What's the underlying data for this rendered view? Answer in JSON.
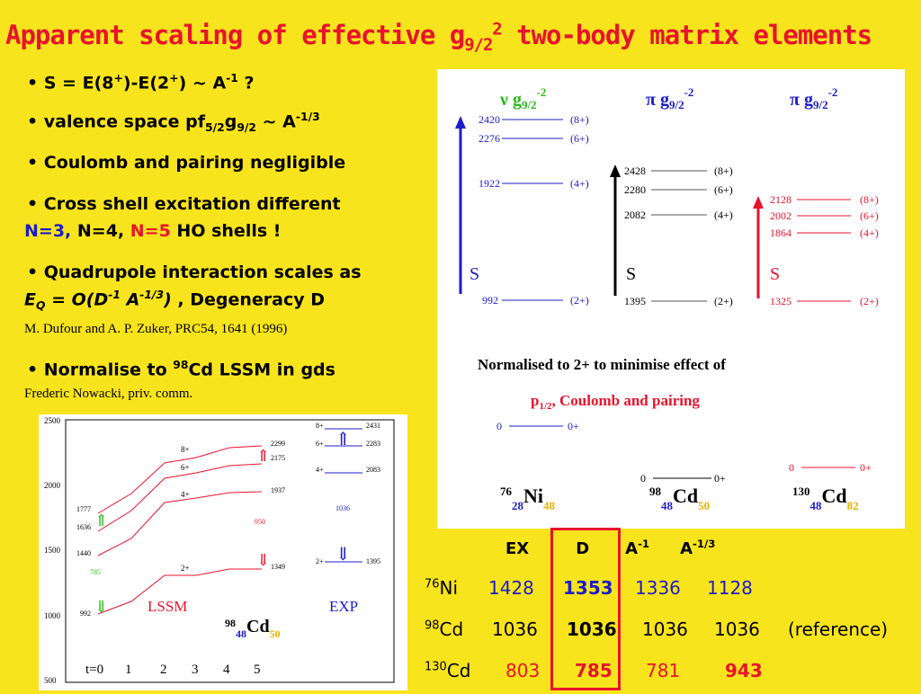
{
  "title": {
    "main": "Apparent scaling of effective g",
    "sub": "9/2",
    "sup": "2",
    "tail": " two-body matrix elements"
  },
  "bullets": {
    "b1": {
      "pre": "• S = E(8",
      "s1": "+",
      "mid": ")-E(2",
      "s2": "+",
      "post": ") ~ A",
      "s3": "-1",
      "end": " ?"
    },
    "b2": {
      "pre": "• valence space pf",
      "s1": "5/2",
      "mid": "g",
      "s2": "9/2",
      "post": " ~ A",
      "s3": "-1/3"
    },
    "b3": "• Coulomb and pairing negligible",
    "b4a": "• Cross shell excitation different",
    "b4b": {
      "n3": "N=3,",
      "n4": " N=4, ",
      "n5": "N=5",
      "ho": " HO shells !"
    },
    "b5a": "• Quadrupole interaction scales as",
    "b5b": {
      "e": "E",
      "q": "Q",
      "eq": " = ",
      "o": "O(D",
      "m1": "-1",
      "a": " A",
      "m13": "-1/3",
      "close": ")",
      "deg": " , Degeneracy D"
    },
    "ref1": "M. Dufour and A. P. Zuker,  PRC54, 1641 (1996)",
    "b6": {
      "pre": "• Normalise to ",
      "mass": "98",
      "post": "Cd LSSM in gds"
    },
    "ref2": "Frederic Nowacki, priv. comm."
  },
  "top_panel": {
    "headers": [
      {
        "sym": "ν",
        "g": "g",
        "sub": "9/2",
        "sup": "-2",
        "color": "#2cb81c"
      },
      {
        "sym": "π",
        "g": "g",
        "sub": "9/2",
        "sup": "-2",
        "color": "#1c1cc8"
      },
      {
        "sym": "π",
        "g": "g",
        "sub": "9/2",
        "sup": "-2",
        "color": "#1c1cc8"
      }
    ],
    "s_label": "S",
    "levels_blue": [
      [
        "2420",
        "(8+)"
      ],
      [
        "2276",
        "(6+)"
      ],
      [
        "1922",
        "(4+)"
      ],
      [
        "992",
        "(2+)"
      ]
    ],
    "levels_black": [
      [
        "2428",
        "(8+)"
      ],
      [
        "2280",
        "(6+)"
      ],
      [
        "2082",
        "(4+)"
      ],
      [
        "1395",
        "(2+)"
      ]
    ],
    "levels_red": [
      [
        "2128",
        "(8+)"
      ],
      [
        "2002",
        "(6+)"
      ],
      [
        "1864",
        "(4+)"
      ],
      [
        "1325",
        "(2+)"
      ]
    ],
    "ground": [
      [
        "0",
        "0+"
      ],
      [
        "0",
        "0+"
      ],
      [
        "0",
        "0+"
      ]
    ],
    "norm_line1": "Normalised to 2+ to minimise effect of",
    "norm_line2": {
      "p": "p",
      "sub": "1/2",
      "rest": ", Coulomb and pairing"
    },
    "nuclei": [
      {
        "a": "76",
        "z": "28",
        "el": "Ni",
        "n": "48"
      },
      {
        "a": "98",
        "z": "48",
        "el": "Cd",
        "n": "50"
      },
      {
        "a": "130",
        "z": "48",
        "el": "Cd",
        "n": "82"
      }
    ]
  },
  "lower_panel": {
    "y_ticks": [
      "2500",
      "2000",
      "1500",
      "1000",
      "500"
    ],
    "t_labels": [
      "t=0",
      "1",
      "2",
      "3",
      "4",
      "5"
    ],
    "spins": [
      "8+",
      "6+",
      "4+",
      "2+"
    ],
    "start_values": [
      "1777",
      "1636",
      "1440",
      "992"
    ],
    "end_values": [
      "2299",
      "2175",
      "1937",
      "1349"
    ],
    "mid_values": [
      "950",
      "785"
    ],
    "exp_levels": [
      [
        "8+",
        "2431"
      ],
      [
        "6+",
        "2283"
      ],
      [
        "4+",
        "2083"
      ],
      [
        "2+",
        "1395"
      ]
    ],
    "exp_mid": "1036",
    "lssm": "LSSM",
    "exp": "EXP",
    "nucleus": {
      "a": "98",
      "z": "48",
      "el": "Cd",
      "n": "50"
    }
  },
  "table": {
    "headers": [
      "EX",
      "D",
      "A",
      "A"
    ],
    "header_sups": [
      "-1",
      "-1/3"
    ],
    "rows": [
      {
        "a": "76",
        "el": "Ni",
        "ex": "1428",
        "d": "1353",
        "a1": "1336",
        "a13": "1128",
        "note": ""
      },
      {
        "a": "98",
        "el": "Cd",
        "ex": "1036",
        "d": "1036",
        "a1": "1036",
        "a13": "1036",
        "note": "(reference)"
      },
      {
        "a": "130",
        "el": "Cd",
        "ex": "803",
        "d": "785",
        "a1": "781",
        "a13": "943",
        "note": ""
      }
    ]
  }
}
